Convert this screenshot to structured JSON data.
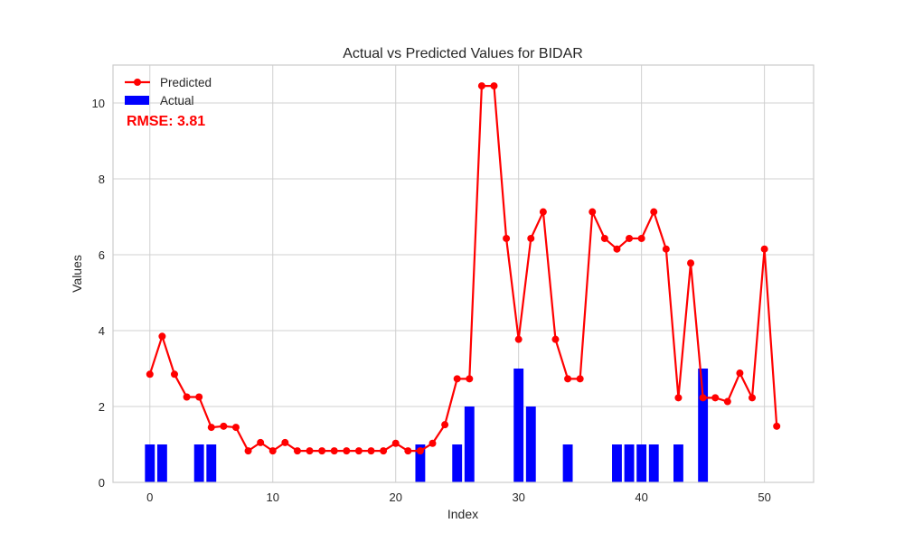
{
  "chart_data": {
    "type": "bar+line",
    "title": "Actual vs Predicted Values for BIDAR",
    "xlabel": "Index",
    "ylabel": "Values",
    "xlim": [
      -3,
      54
    ],
    "ylim": [
      0,
      11
    ],
    "xticks": [
      0,
      10,
      20,
      30,
      40,
      50
    ],
    "yticks": [
      0,
      2,
      4,
      6,
      8,
      10
    ],
    "grid": true,
    "legend_position": "top-left",
    "annotation": "RMSE: 3.81",
    "colors": {
      "predicted": "#ff0000",
      "actual": "#0000ff",
      "annotation": "#ff0000",
      "grid": "#d0d0d0"
    },
    "series": [
      {
        "name": "Predicted",
        "kind": "line",
        "x": [
          0,
          1,
          2,
          3,
          4,
          5,
          6,
          7,
          8,
          9,
          10,
          11,
          12,
          13,
          14,
          15,
          16,
          17,
          18,
          19,
          20,
          21,
          22,
          23,
          24,
          25,
          26,
          27,
          28,
          29,
          30,
          31,
          32,
          33,
          34,
          35,
          36,
          37,
          38,
          39,
          40,
          41,
          42,
          43,
          44,
          45,
          46,
          47,
          48,
          49,
          50,
          51
        ],
        "values": [
          2.85,
          3.85,
          2.85,
          2.25,
          2.25,
          1.45,
          1.48,
          1.45,
          0.83,
          1.05,
          0.83,
          1.05,
          0.83,
          0.83,
          0.83,
          0.83,
          0.83,
          0.83,
          0.83,
          0.83,
          1.03,
          0.83,
          0.83,
          1.03,
          1.52,
          2.73,
          2.73,
          10.45,
          10.45,
          6.43,
          3.77,
          6.43,
          7.13,
          3.77,
          2.73,
          2.73,
          7.13,
          6.43,
          6.15,
          6.43,
          6.43,
          7.13,
          6.15,
          2.23,
          5.78,
          2.23,
          2.23,
          2.13,
          2.88,
          2.23,
          6.15,
          1.48
        ]
      },
      {
        "name": "Actual",
        "kind": "bar",
        "x": [
          0,
          1,
          2,
          3,
          4,
          5,
          6,
          7,
          8,
          9,
          10,
          11,
          12,
          13,
          14,
          15,
          16,
          17,
          18,
          19,
          20,
          21,
          22,
          23,
          24,
          25,
          26,
          27,
          28,
          29,
          30,
          31,
          32,
          33,
          34,
          35,
          36,
          37,
          38,
          39,
          40,
          41,
          42,
          43,
          44,
          45,
          46,
          47,
          48,
          49,
          50,
          51
        ],
        "values": [
          1,
          1,
          0,
          0,
          1,
          1,
          0,
          0,
          0,
          0,
          0,
          0,
          0,
          0,
          0,
          0,
          0,
          0,
          0,
          0,
          0,
          0,
          1,
          0,
          0,
          1,
          2,
          0,
          0,
          0,
          3,
          2,
          0,
          0,
          1,
          0,
          0,
          0,
          1,
          1,
          1,
          1,
          0,
          1,
          0,
          3,
          0,
          0,
          0,
          0,
          0,
          0
        ]
      }
    ]
  }
}
